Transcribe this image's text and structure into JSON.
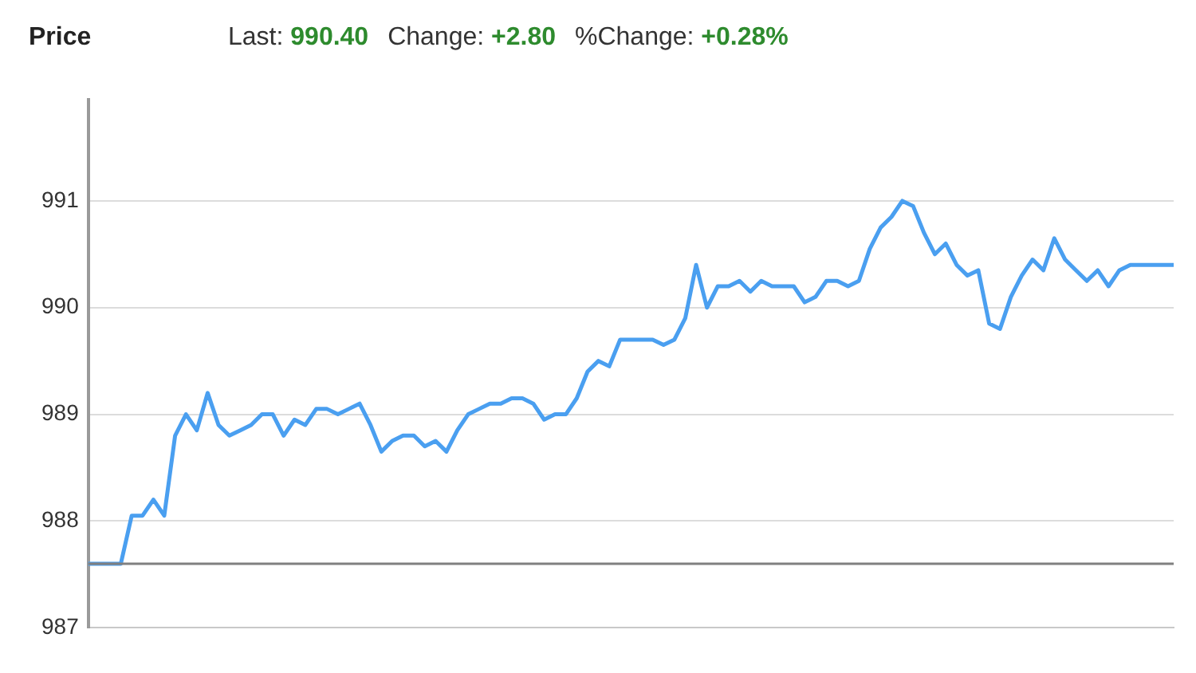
{
  "chart_data": {
    "type": "line",
    "title": "Price",
    "annotations": [
      "Last: 990.40",
      "Change: +2.80",
      "%Change: +0.28%"
    ],
    "categories": [
      null,
      null,
      null,
      null,
      null,
      null,
      null,
      null,
      null,
      null,
      null,
      null,
      null,
      null,
      null,
      null,
      null,
      null,
      null,
      null,
      null,
      null,
      null,
      null,
      null,
      null,
      null,
      null,
      null,
      null,
      null,
      null,
      null,
      null,
      null,
      null,
      null,
      null,
      null,
      null,
      null,
      null,
      null,
      null,
      null,
      null,
      null,
      null,
      null,
      null,
      null,
      null,
      null,
      null,
      null,
      null,
      null,
      null,
      null,
      null,
      null,
      null,
      null,
      null,
      null,
      null,
      null,
      null,
      null,
      null,
      null,
      null,
      null,
      null,
      null,
      null,
      null,
      null,
      null,
      null,
      null,
      null,
      null,
      null,
      null,
      null,
      null,
      null,
      null,
      null,
      null,
      null,
      null,
      null,
      null,
      null,
      null,
      null,
      null,
      null,
      null
    ],
    "series": [
      {
        "color": "#4a9ff0",
        "values": [
          987.6,
          987.6,
          987.6,
          987.6,
          988.05,
          988.05,
          988.2,
          988.05,
          988.8,
          989.0,
          988.85,
          989.2,
          988.9,
          988.8,
          988.85,
          988.9,
          989.0,
          989.0,
          988.8,
          988.95,
          988.9,
          989.05,
          989.05,
          989.0,
          989.05,
          989.1,
          988.9,
          988.65,
          988.75,
          988.8,
          988.8,
          988.7,
          988.75,
          988.65,
          988.85,
          989.0,
          989.05,
          989.1,
          989.1,
          989.15,
          989.15,
          989.1,
          988.95,
          989.0,
          989.0,
          989.15,
          989.4,
          989.5,
          989.45,
          989.7,
          989.7,
          989.7,
          989.7,
          989.65,
          989.7,
          989.9,
          990.4,
          990.0,
          990.2,
          990.2,
          990.25,
          990.15,
          990.25,
          990.2,
          990.2,
          990.2,
          990.05,
          990.1,
          990.25,
          990.25,
          990.2,
          990.25,
          990.55,
          990.75,
          990.85,
          991.0,
          990.95,
          990.7,
          990.5,
          990.6,
          990.4,
          990.3,
          990.35,
          989.85,
          989.8,
          990.1,
          990.3,
          990.45,
          990.35,
          990.65,
          990.45,
          990.35,
          990.25,
          990.35,
          990.2,
          990.35,
          990.4,
          990.4,
          990.4,
          990.4,
          990.4
        ]
      }
    ],
    "ylim": [
      987,
      991.95
    ],
    "yticks": [
      987,
      988,
      989,
      990,
      991
    ],
    "ref_lines": [
      {
        "axis": "y",
        "value": 987.6,
        "color": "#808080"
      }
    ],
    "grid": "y",
    "legend": false,
    "marker": "none",
    "line_style": "solid",
    "tick_labels": "y"
  }
}
